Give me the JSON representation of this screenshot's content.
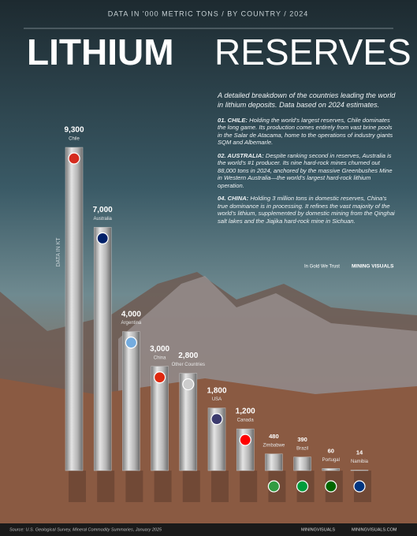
{
  "header": {
    "subtitle": "DATA IN '000 METRIC TONS / BY COUNTRY / 2024",
    "title_bold": "LITHIUM",
    "title_light": "RESERVES"
  },
  "intro": "A detailed breakdown of the countries leading the world in lithium deposits. Data based on 2024 estimates.",
  "notes": [
    {
      "heading": "01. CHILE:",
      "text": "Holding the world's largest reserves, Chile dominates the long game. Its production comes entirely from vast brine pools in the Salar de Atacama, home to the operations of industry giants SQM and Albemarle."
    },
    {
      "heading": "02. AUSTRALIA:",
      "text": "Despite ranking second in reserves, Australia is the world's #1 producer. Its nine hard-rock mines churned out 88,000 tons in 2024, anchored by the massive Greenbushes Mine in Western Australia—the world's largest hard-rock lithium operation."
    },
    {
      "heading": "04. CHINA:",
      "text": "Holding 3 million tons in domestic reserves, China's true dominance is in processing. It refines the vast majority of the world's lithium, supplemented by domestic mining from the Qinghai salt lakes and the Jiajika hard-rock mine in Sichuan."
    }
  ],
  "partners": [
    "In Gold We Trust",
    "MINING VISUALS"
  ],
  "chart_data": {
    "type": "bar",
    "y_label": "DATA IN KT",
    "categories": [
      "Chile",
      "Australia",
      "Argentina",
      "China",
      "Other Countries",
      "USA",
      "Canada",
      "Zimbabwe",
      "Brazil",
      "Portugal",
      "Namibia"
    ],
    "values": [
      9300,
      7000,
      4000,
      3000,
      2800,
      1800,
      1200,
      480,
      390,
      60,
      14
    ],
    "value_labels": [
      "9,300",
      "7,000",
      "4,000",
      "3,000",
      "2,800",
      "1,800",
      "1,200",
      "480",
      "390",
      "60",
      "14"
    ],
    "color": "#c4c4c4"
  },
  "footer": {
    "source": "Source: U.S. Geological Survey, Mineral Commodity Summaries, January 2025",
    "social": "MININGVISUALS",
    "website": "MININGVISUALS.COM"
  }
}
